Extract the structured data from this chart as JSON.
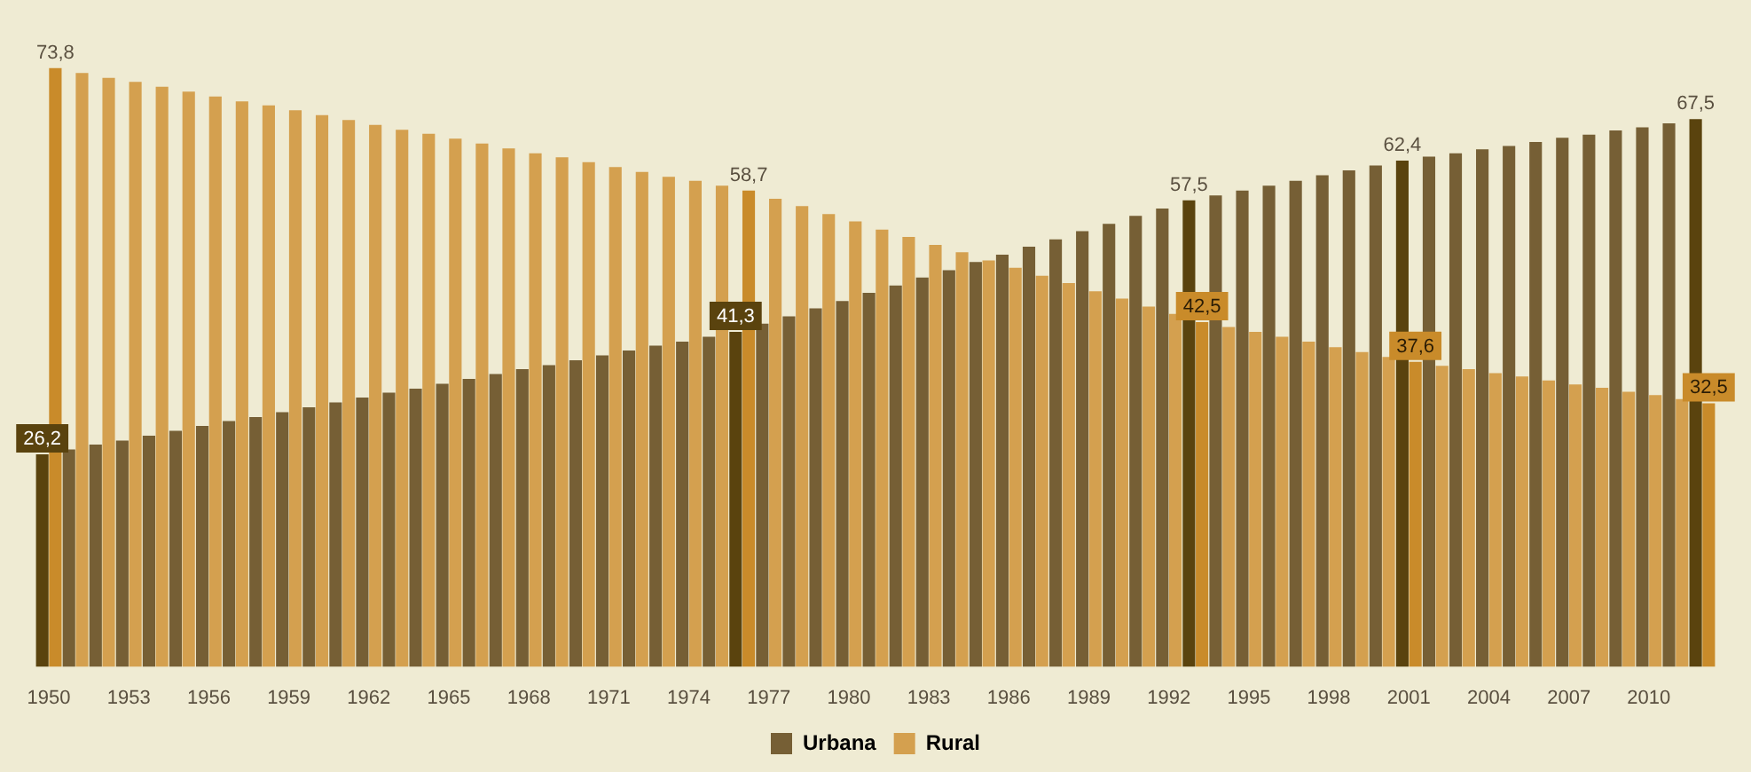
{
  "chart_data": {
    "type": "bar",
    "categories": [
      "1950",
      null,
      null,
      "1953",
      null,
      null,
      "1956",
      null,
      null,
      "1959",
      null,
      null,
      "1962",
      null,
      null,
      "1965",
      null,
      null,
      "1968",
      null,
      null,
      "1971",
      null,
      null,
      "1974",
      null,
      null,
      "1977",
      null,
      null,
      "1980",
      null,
      null,
      "1983",
      null,
      null,
      "1986",
      null,
      null,
      "1989",
      null,
      null,
      "1992",
      null,
      null,
      "1995",
      null,
      null,
      "1998",
      null,
      null,
      "2001",
      null,
      null,
      "2004",
      null,
      null,
      "2007",
      null,
      null,
      "2010",
      null,
      null
    ],
    "series": [
      {
        "name": "Urbana",
        "color": "#765f35",
        "colors": [
          "#5a430e",
          "#765f35",
          "#765f35",
          "#765f35",
          "#765f35",
          "#765f35",
          "#765f35",
          "#765f35",
          "#765f35",
          "#765f35",
          "#765f35",
          "#765f35",
          "#765f35",
          "#765f35",
          "#765f35",
          "#765f35",
          "#765f35",
          "#765f35",
          "#765f35",
          "#765f35",
          "#765f35",
          "#765f35",
          "#765f35",
          "#765f35",
          "#765f35",
          "#765f35",
          "#5a430e",
          "#765f35",
          "#765f35",
          "#765f35",
          "#765f35",
          "#765f35",
          "#765f35",
          "#765f35",
          "#765f35",
          "#765f35",
          "#765f35",
          "#765f35",
          "#765f35",
          "#765f35",
          "#765f35",
          "#765f35",
          "#765f35",
          "#5a430e",
          "#765f35",
          "#765f35",
          "#765f35",
          "#765f35",
          "#765f35",
          "#765f35",
          "#765f35",
          "#5a430e",
          "#765f35",
          "#765f35",
          "#765f35",
          "#765f35",
          "#765f35",
          "#765f35",
          "#765f35",
          "#765f35",
          "#765f35",
          "#765f35",
          "#5a430e"
        ],
        "values": [
          26.2,
          26.8,
          27.4,
          27.9,
          28.5,
          29.1,
          29.7,
          30.3,
          30.8,
          31.4,
          32.0,
          32.6,
          33.2,
          33.8,
          34.3,
          34.9,
          35.5,
          36.1,
          36.7,
          37.2,
          37.8,
          38.4,
          39.0,
          39.6,
          40.1,
          40.7,
          41.3,
          42.3,
          43.2,
          44.2,
          45.1,
          46.1,
          47.0,
          48.0,
          48.9,
          49.9,
          50.8,
          51.8,
          52.7,
          53.7,
          54.6,
          55.6,
          56.5,
          57.5,
          58.1,
          58.7,
          59.3,
          59.9,
          60.6,
          61.2,
          61.8,
          62.4,
          62.9,
          63.3,
          63.8,
          64.2,
          64.7,
          65.2,
          65.6,
          66.1,
          66.5,
          67.0,
          67.5
        ],
        "value_labels": [
          "26,2",
          null,
          null,
          null,
          null,
          null,
          null,
          null,
          null,
          null,
          null,
          null,
          null,
          null,
          null,
          null,
          null,
          null,
          null,
          null,
          null,
          null,
          null,
          null,
          null,
          null,
          "41,3",
          null,
          null,
          null,
          null,
          null,
          null,
          null,
          null,
          null,
          null,
          null,
          null,
          null,
          null,
          null,
          null,
          "57,5",
          null,
          null,
          null,
          null,
          null,
          null,
          null,
          "62,4",
          null,
          null,
          null,
          null,
          null,
          null,
          null,
          null,
          null,
          null,
          "67,5"
        ]
      },
      {
        "name": "Rural",
        "color": "#d4a04f",
        "colors": [
          "#c98b2a",
          "#d4a04f",
          "#d4a04f",
          "#d4a04f",
          "#d4a04f",
          "#d4a04f",
          "#d4a04f",
          "#d4a04f",
          "#d4a04f",
          "#d4a04f",
          "#d4a04f",
          "#d4a04f",
          "#d4a04f",
          "#d4a04f",
          "#d4a04f",
          "#d4a04f",
          "#d4a04f",
          "#d4a04f",
          "#d4a04f",
          "#d4a04f",
          "#d4a04f",
          "#d4a04f",
          "#d4a04f",
          "#d4a04f",
          "#d4a04f",
          "#d4a04f",
          "#c98b2a",
          "#d4a04f",
          "#d4a04f",
          "#d4a04f",
          "#d4a04f",
          "#d4a04f",
          "#d4a04f",
          "#d4a04f",
          "#d4a04f",
          "#d4a04f",
          "#d4a04f",
          "#d4a04f",
          "#d4a04f",
          "#d4a04f",
          "#d4a04f",
          "#d4a04f",
          "#d4a04f",
          "#c98b2a",
          "#d4a04f",
          "#d4a04f",
          "#d4a04f",
          "#d4a04f",
          "#d4a04f",
          "#d4a04f",
          "#d4a04f",
          "#c98b2a",
          "#d4a04f",
          "#d4a04f",
          "#d4a04f",
          "#d4a04f",
          "#d4a04f",
          "#d4a04f",
          "#d4a04f",
          "#d4a04f",
          "#d4a04f",
          "#d4a04f",
          "#c98b2a"
        ],
        "values": [
          73.8,
          73.2,
          72.6,
          72.1,
          71.5,
          70.9,
          70.3,
          69.7,
          69.2,
          68.6,
          68.0,
          67.4,
          66.8,
          66.2,
          65.7,
          65.1,
          64.5,
          63.9,
          63.3,
          62.8,
          62.2,
          61.6,
          61.0,
          60.4,
          59.9,
          59.3,
          58.7,
          57.7,
          56.8,
          55.8,
          54.9,
          53.9,
          53.0,
          52.0,
          51.1,
          50.1,
          49.2,
          48.2,
          47.3,
          46.3,
          45.4,
          44.4,
          43.5,
          42.5,
          41.9,
          41.3,
          40.7,
          40.1,
          39.4,
          38.8,
          38.2,
          37.6,
          37.1,
          36.7,
          36.2,
          35.8,
          35.3,
          34.8,
          34.4,
          33.9,
          33.5,
          33.0,
          32.5
        ],
        "value_labels": [
          "73,8",
          null,
          null,
          null,
          null,
          null,
          null,
          null,
          null,
          null,
          null,
          null,
          null,
          null,
          null,
          null,
          null,
          null,
          null,
          null,
          null,
          null,
          null,
          null,
          null,
          null,
          "58,7",
          null,
          null,
          null,
          null,
          null,
          null,
          null,
          null,
          null,
          null,
          null,
          null,
          null,
          null,
          null,
          null,
          "42,5",
          null,
          null,
          null,
          null,
          null,
          null,
          null,
          "37,6",
          null,
          null,
          null,
          null,
          null,
          null,
          null,
          null,
          null,
          null,
          "32,5"
        ]
      }
    ],
    "tick_labels": "x",
    "legend": "bottom"
  }
}
